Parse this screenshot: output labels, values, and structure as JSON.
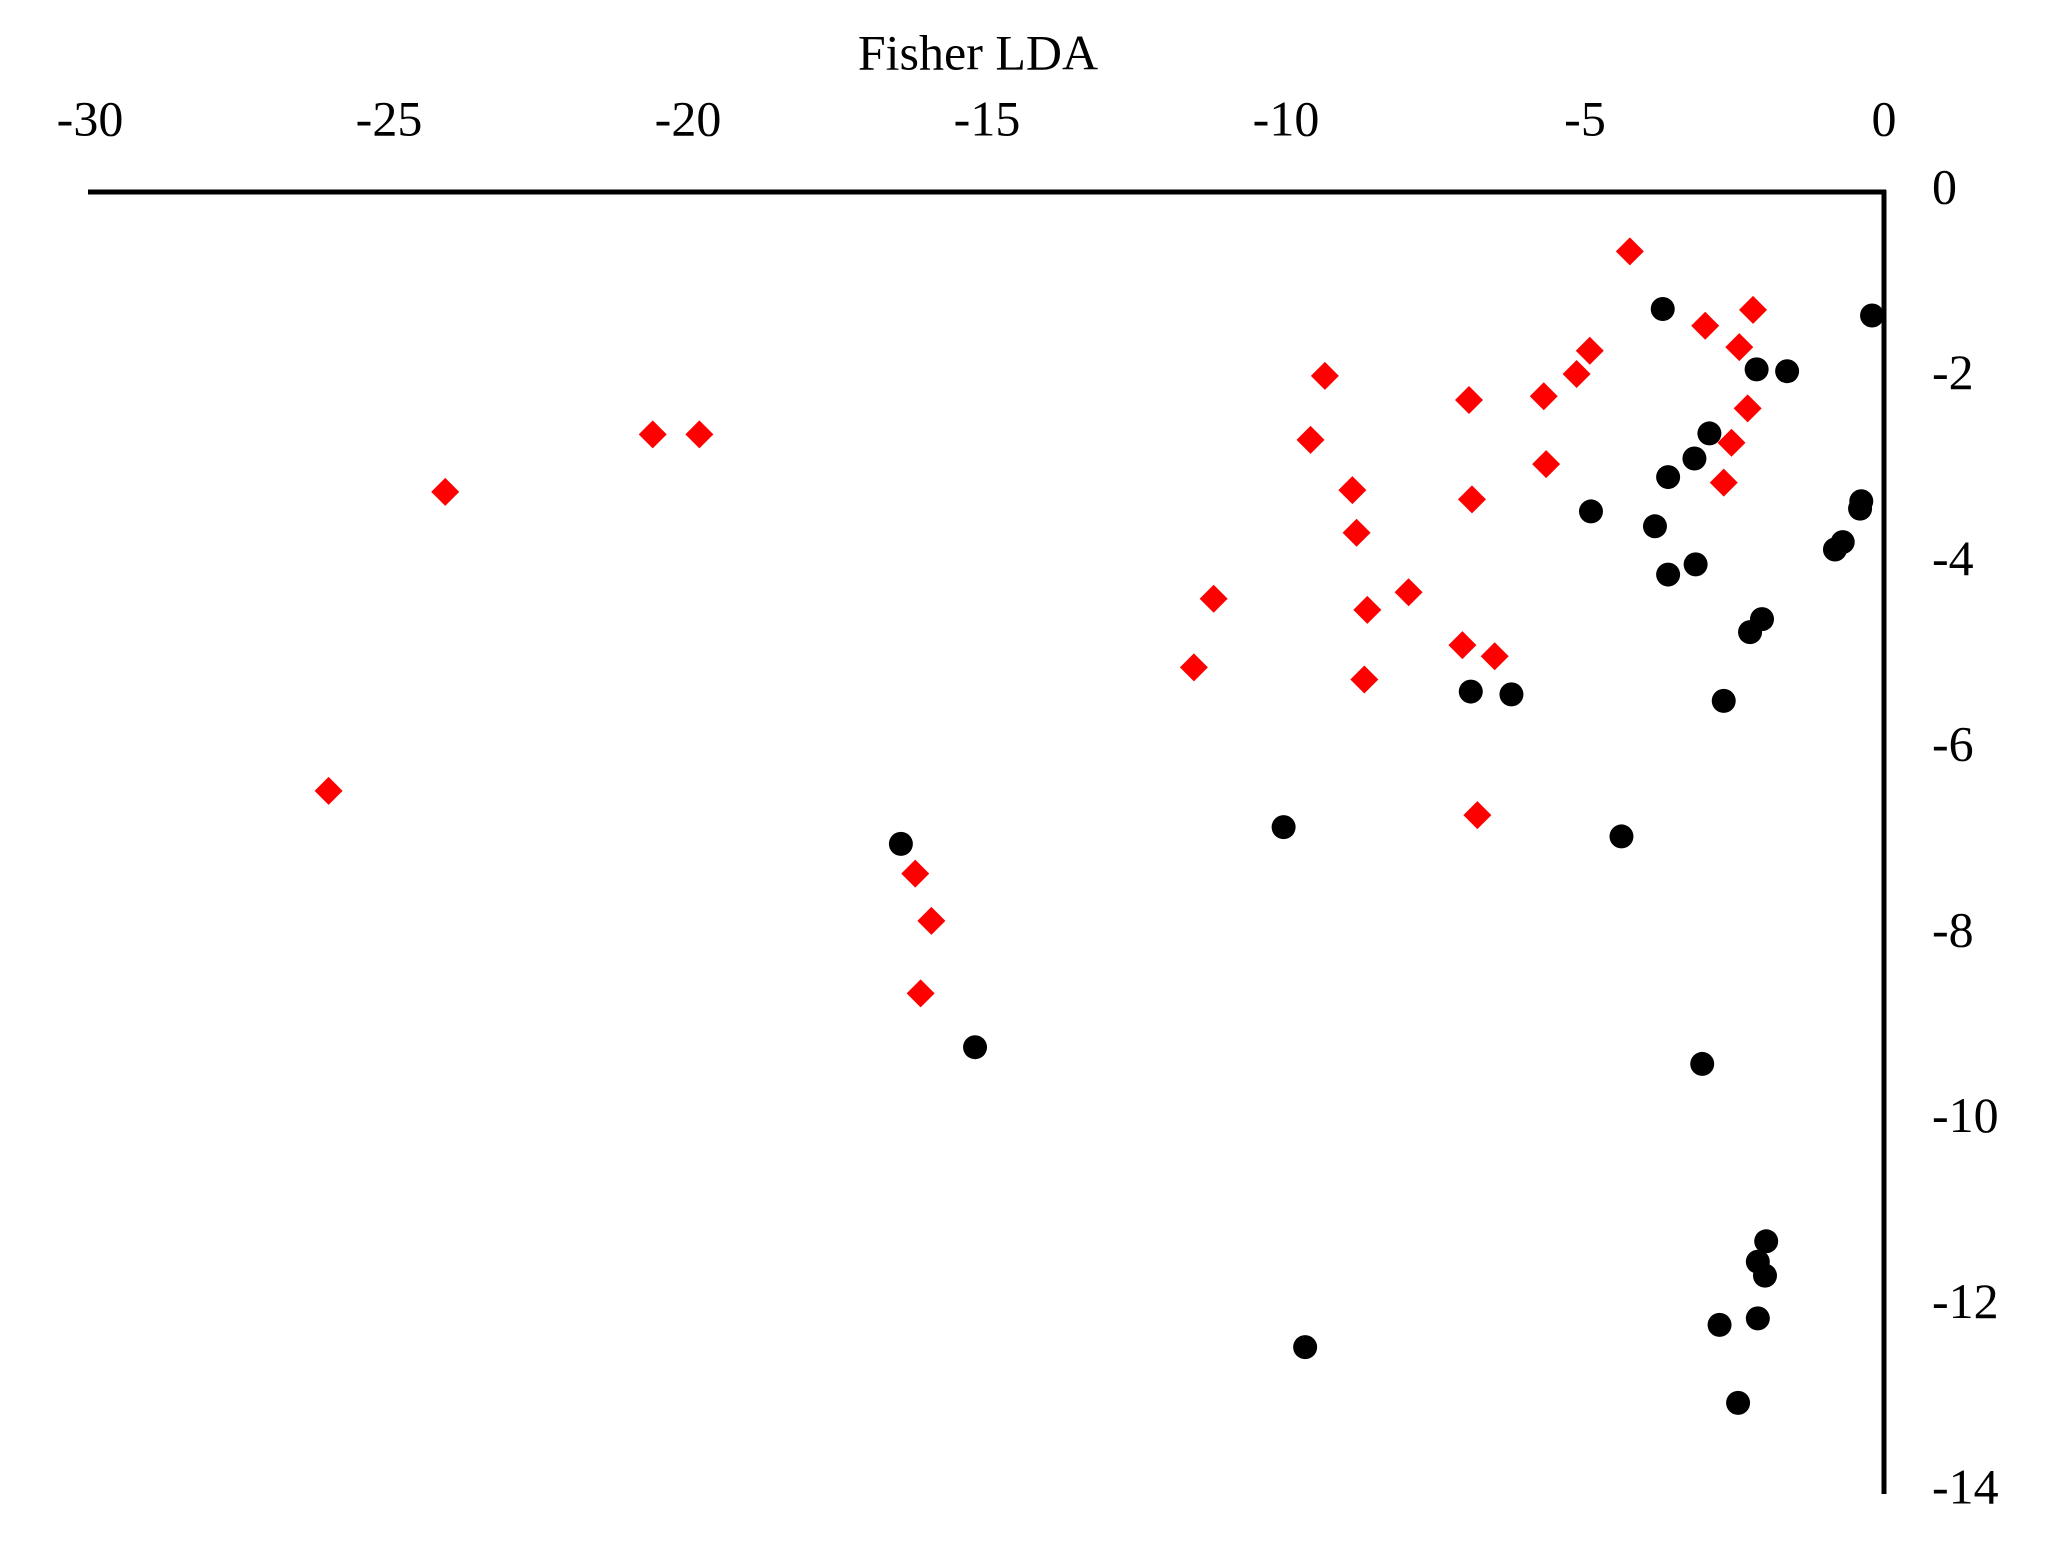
{
  "chart_data": {
    "type": "scatter",
    "title": "Fisher LDA",
    "xlim": [
      -30,
      0
    ],
    "xticks": [
      -30,
      -25,
      -20,
      -15,
      -10,
      -5,
      0
    ],
    "ylim": [
      -14,
      0
    ],
    "yticks": [
      0,
      -2,
      -4,
      -6,
      -8,
      -10,
      -12,
      -14
    ],
    "grid": false,
    "series": [
      {
        "color": "#ff0000",
        "marker": "diamond",
        "x": [
          -4.25,
          -2.19,
          -2.99,
          -2.42,
          -4.92,
          -5.14,
          -9.35,
          -5.69,
          -6.94,
          -2.28,
          -20.59,
          -19.81,
          -9.59,
          -2.55,
          -5.65,
          -2.68,
          -8.89,
          -6.89,
          -24.06,
          -8.82,
          -7.95,
          -11.21,
          -8.64,
          -7.05,
          -6.51,
          -11.54,
          -8.69,
          -6.8,
          -26.01,
          -16.2,
          -15.93,
          -16.11
        ],
        "values": [
          -0.64,
          -1.27,
          -1.44,
          -1.67,
          -1.71,
          -1.96,
          -1.98,
          -2.2,
          -2.24,
          -2.33,
          -2.61,
          -2.61,
          -2.67,
          -2.7,
          -2.93,
          -3.13,
          -3.21,
          -3.31,
          -3.23,
          -3.67,
          -4.31,
          -4.38,
          -4.5,
          -4.88,
          -5.0,
          -5.12,
          -5.25,
          -6.71,
          -6.45,
          -7.34,
          -7.85,
          -8.63
        ]
      },
      {
        "color": "#000000",
        "marker": "circle",
        "x": [
          -3.7,
          -0.2,
          -2.13,
          -1.62,
          -2.92,
          -3.17,
          -3.61,
          -0.38,
          -0.4,
          -4.9,
          -3.83,
          -0.69,
          -0.82,
          -3.15,
          -3.61,
          -2.04,
          -2.24,
          -6.91,
          -6.23,
          -2.68,
          -10.04,
          -4.39,
          -16.44,
          -15.2,
          -3.04,
          -1.97,
          -2.11,
          -1.99,
          -2.11,
          -2.75,
          -9.68,
          -2.44
        ],
        "values": [
          -1.26,
          -1.33,
          -1.91,
          -1.93,
          -2.6,
          -2.87,
          -3.07,
          -3.33,
          -3.41,
          -3.44,
          -3.6,
          -3.77,
          -3.85,
          -4.01,
          -4.12,
          -4.6,
          -4.74,
          -5.38,
          -5.41,
          -5.48,
          -6.84,
          -6.94,
          -7.02,
          -9.21,
          -9.39,
          -11.3,
          -11.52,
          -11.67,
          -12.13,
          -12.2,
          -12.44,
          -13.04
        ]
      }
    ]
  }
}
